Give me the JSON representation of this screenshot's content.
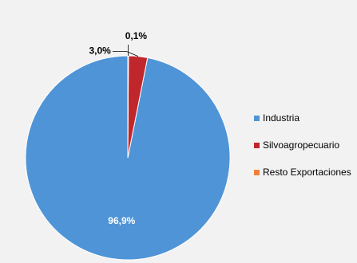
{
  "chart_data": {
    "type": "pie",
    "title": "",
    "categories": [
      "Industria",
      "Silvoagropecuario",
      "Resto Exportaciones"
    ],
    "values": [
      96.9,
      3.0,
      0.1
    ],
    "labels": [
      "96,9%",
      "3,0%",
      "0,1%"
    ],
    "colors": [
      "#4f94d6",
      "#c0272d",
      "#f0803c"
    ],
    "legend_position": "right",
    "start": "top",
    "direction": "counterclockwise"
  }
}
